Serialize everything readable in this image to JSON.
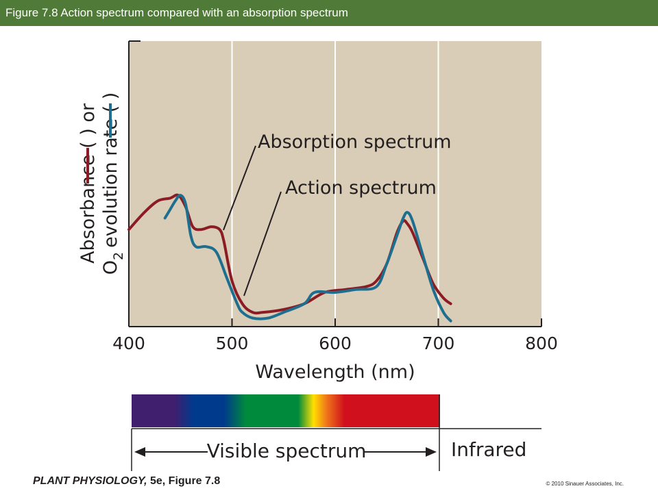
{
  "header": {
    "title": "Figure 7.8  Action spectrum compared with an absorption spectrum"
  },
  "footer": {
    "book": "PLANT PHYSIOLOGY,",
    "figure": " 5e, Figure 7.8",
    "copyright": "© 2010 Sinauer Associates, Inc."
  },
  "chart_data": {
    "type": "line",
    "xlabel": "Wavelength (nm)",
    "ylabel_line1": "Absorbance (        ) or",
    "ylabel_line2": "evolution rate (        )",
    "ylabel_o2": "O",
    "ylabel_sub": "2",
    "xlim": [
      400,
      800
    ],
    "ylim": [
      0,
      1
    ],
    "x_ticks": [
      "400",
      "500",
      "600",
      "700",
      "800"
    ],
    "grid": true,
    "series": [
      {
        "name": "Absorption spectrum",
        "color": "#8c1c23",
        "x": [
          400,
          415,
          428,
          440,
          448,
          455,
          462,
          470,
          480,
          488,
          492,
          500,
          510,
          520,
          530,
          550,
          570,
          590,
          610,
          630,
          640,
          650,
          660,
          666,
          670,
          675,
          685,
          695,
          705,
          712
        ],
        "y": [
          0.34,
          0.4,
          0.44,
          0.45,
          0.46,
          0.42,
          0.35,
          0.34,
          0.35,
          0.34,
          0.3,
          0.16,
          0.08,
          0.05,
          0.05,
          0.06,
          0.08,
          0.12,
          0.13,
          0.14,
          0.16,
          0.22,
          0.33,
          0.37,
          0.36,
          0.33,
          0.24,
          0.15,
          0.1,
          0.08
        ]
      },
      {
        "name": "Action spectrum",
        "color": "#1d6e8f",
        "x": [
          435,
          440,
          445,
          450,
          455,
          460,
          465,
          475,
          485,
          495,
          505,
          510,
          520,
          535,
          550,
          570,
          580,
          600,
          620,
          640,
          650,
          660,
          666,
          670,
          675,
          685,
          695,
          705,
          712
        ],
        "y": [
          0.38,
          0.41,
          0.44,
          0.46,
          0.43,
          0.32,
          0.28,
          0.28,
          0.26,
          0.17,
          0.08,
          0.05,
          0.03,
          0.03,
          0.05,
          0.08,
          0.12,
          0.12,
          0.13,
          0.14,
          0.22,
          0.32,
          0.38,
          0.4,
          0.37,
          0.25,
          0.13,
          0.05,
          0.02
        ]
      }
    ],
    "annotations": [
      {
        "text": "Absorption spectrum",
        "x": 490,
        "y": 0.34
      },
      {
        "text": "Action spectrum",
        "x": 508,
        "y": 0.08
      }
    ],
    "spectrum_bar": {
      "range": [
        400,
        700
      ],
      "bands": [
        {
          "color": "#3f1f6e",
          "from": 400,
          "to": 450
        },
        {
          "color": "#003a8c",
          "from": 450,
          "to": 500
        },
        {
          "color": "#008a3c",
          "from": 500,
          "to": 580
        },
        {
          "color": "#ffe000",
          "from": 580,
          "to": 590
        },
        {
          "color": "#f07a1a",
          "from": 590,
          "to": 620
        },
        {
          "color": "#d0101c",
          "from": 620,
          "to": 700
        }
      ],
      "visible_label": "Visible spectrum",
      "infrared_label": "Infrared"
    },
    "colors": {
      "plot_background": "#d9cdb7",
      "grid": "#ffffff",
      "axis": "#231f20"
    }
  }
}
